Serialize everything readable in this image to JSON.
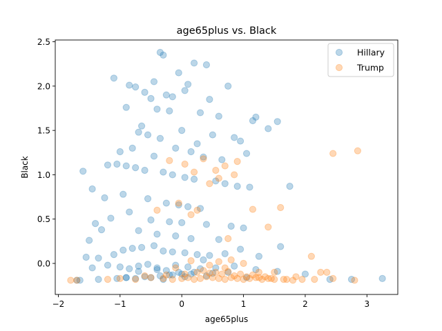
{
  "chart_data": {
    "type": "scatter",
    "title": "age65plus vs. Black",
    "xlabel": "age65plus",
    "ylabel": "Black",
    "xlim": [
      -2.05,
      3.5
    ],
    "ylim": [
      -0.35,
      2.52
    ],
    "xticks": [
      -2,
      -1,
      0,
      1,
      2,
      3
    ],
    "xtick_labels": [
      "−2",
      "−1",
      "0",
      "1",
      "2",
      "3"
    ],
    "yticks": [
      0.0,
      0.5,
      1.0,
      1.5,
      2.0,
      2.5
    ],
    "ytick_labels": [
      "0.0",
      "0.5",
      "1.0",
      "1.5",
      "2.0",
      "2.5"
    ],
    "grid": false,
    "legend_position": "top-right",
    "series": [
      {
        "name": "Hillary",
        "color": "#1f77b4",
        "x": [
          -0.35,
          -0.3,
          0.2,
          0.4,
          -0.05,
          -1.1,
          -0.45,
          -0.85,
          0.75,
          -0.75,
          0.1,
          0.05,
          -0.6,
          -0.25,
          -0.15,
          -0.5,
          0.45,
          -0.9,
          -0.4,
          -0.2,
          0.3,
          1.2,
          1.15,
          0.6,
          1.4,
          1.55,
          -0.65,
          0.0,
          -0.7,
          -0.55,
          0.5,
          -0.35,
          0.85,
          0.95,
          0.25,
          -0.8,
          -0.1,
          0.15,
          -1.0,
          -0.45,
          0.35,
          1.05,
          0.65,
          -1.6,
          -1.45,
          -1.2,
          -1.05,
          -0.9,
          -0.75,
          -0.6,
          -0.3,
          -0.15,
          0.05,
          0.2,
          0.55,
          0.7,
          0.9,
          1.1,
          -0.95,
          -1.25,
          -1.4,
          -0.55,
          -0.25,
          -0.05,
          0.1,
          0.3,
          -0.85,
          -1.15,
          -0.5,
          -0.2,
          0.0,
          0.4,
          0.8,
          1.0,
          1.75,
          -1.5,
          -1.3,
          -0.7,
          -0.4,
          -0.1,
          0.15,
          0.6,
          1.6,
          -1.55,
          -1.35,
          -1.1,
          -0.95,
          -0.8,
          -0.65,
          -0.45,
          -0.3,
          -0.15,
          0.05,
          0.25,
          0.45,
          0.7,
          0.95,
          1.25,
          -1.65,
          -1.45,
          -1.2,
          -1.0,
          -0.85,
          -0.7,
          -0.55,
          -0.4,
          -0.25,
          -0.1,
          0.1,
          0.3,
          0.55,
          0.85,
          1.2,
          1.55,
          2.0,
          2.4,
          2.75,
          3.25,
          -1.7,
          -1.35,
          -1.05,
          -0.9,
          -0.6,
          -0.35,
          -0.2,
          0.0,
          0.2,
          0.5,
          -0.75,
          -0.5,
          -0.3,
          0.05,
          -0.15,
          -0.05,
          0.35,
          -0.9,
          -0.7,
          -0.4,
          0.15,
          0.4,
          0.75,
          1.05
        ],
        "y": [
          2.38,
          2.35,
          2.26,
          2.24,
          2.15,
          2.09,
          2.05,
          2.01,
          2.0,
          1.99,
          2.02,
          1.95,
          1.93,
          1.9,
          1.88,
          1.86,
          1.85,
          1.76,
          1.74,
          1.72,
          1.7,
          1.65,
          1.61,
          1.66,
          1.52,
          1.6,
          1.55,
          1.5,
          1.48,
          1.45,
          1.45,
          1.41,
          1.42,
          1.38,
          1.35,
          1.3,
          1.3,
          1.26,
          1.26,
          1.21,
          1.2,
          1.24,
          1.17,
          1.04,
          0.84,
          1.11,
          1.12,
          1.1,
          1.08,
          1.05,
          1.03,
          1.0,
          0.97,
          0.95,
          0.93,
          0.9,
          0.87,
          0.86,
          0.78,
          0.74,
          0.45,
          0.73,
          0.68,
          0.66,
          0.64,
          0.62,
          0.58,
          0.51,
          0.49,
          0.47,
          0.46,
          0.44,
          0.42,
          0.4,
          0.87,
          0.26,
          0.38,
          0.37,
          0.33,
          0.31,
          0.28,
          0.27,
          0.19,
          0.07,
          0.06,
          0.1,
          0.15,
          0.17,
          0.18,
          0.2,
          0.14,
          0.13,
          0.12,
          0.1,
          0.09,
          0.11,
          0.16,
          0.08,
          -0.19,
          -0.05,
          -0.02,
          -0.04,
          -0.06,
          -0.03,
          -0.01,
          -0.07,
          -0.08,
          -0.02,
          -0.04,
          -0.06,
          -0.05,
          -0.03,
          -0.07,
          -0.09,
          -0.12,
          -0.18,
          -0.18,
          -0.17,
          -0.19,
          -0.18,
          -0.17,
          -0.16,
          -0.15,
          -0.14,
          -0.13,
          -0.12,
          -0.1,
          -0.11,
          -0.17,
          -0.16,
          -0.18,
          -0.15,
          -0.13,
          -0.1,
          0.04,
          -0.16,
          -0.09,
          -0.05,
          -0.12,
          -0.14,
          -0.1,
          -0.16
        ]
      },
      {
        "name": "Trump",
        "color": "#ff7f0e",
        "x": [
          2.85,
          2.45,
          -0.2,
          0.05,
          0.35,
          0.7,
          0.9,
          0.55,
          0.2,
          0.85,
          0.6,
          0.45,
          1.6,
          1.15,
          1.4,
          -0.05,
          0.25,
          -0.4,
          0.15,
          0.75,
          2.1,
          2.25,
          2.35,
          -0.1,
          1.5,
          -1.8,
          -1.7,
          -1.2,
          -1.0,
          -0.75,
          -0.5,
          -0.3,
          -0.15,
          0.0,
          0.1,
          0.2,
          0.3,
          0.4,
          0.5,
          0.6,
          0.7,
          0.8,
          0.9,
          1.0,
          1.1,
          1.2,
          1.3,
          1.4,
          1.5,
          1.65,
          1.8,
          1.95,
          2.15,
          2.45,
          2.8,
          -0.6,
          -0.25,
          0.05,
          0.25,
          0.45,
          0.65,
          0.85,
          1.05,
          1.25,
          1.45,
          1.7,
          0.35,
          0.55,
          0.75,
          0.95,
          1.15,
          1.35,
          0.6,
          0.8,
          1.0,
          0.15,
          0.45,
          0.7,
          1.25,
          1.85
        ],
        "y": [
          1.27,
          1.24,
          1.16,
          1.12,
          1.18,
          1.1,
          1.15,
          1.05,
          1.03,
          1.0,
          0.96,
          0.9,
          0.63,
          0.61,
          0.41,
          0.68,
          0.6,
          0.6,
          0.55,
          0.28,
          0.08,
          -0.1,
          -0.1,
          -0.05,
          -0.1,
          -0.19,
          -0.19,
          -0.18,
          -0.17,
          -0.18,
          -0.16,
          -0.17,
          -0.18,
          -0.17,
          -0.16,
          -0.18,
          -0.17,
          -0.15,
          -0.16,
          -0.17,
          -0.18,
          -0.16,
          -0.17,
          -0.18,
          -0.17,
          -0.16,
          -0.18,
          -0.17,
          -0.18,
          -0.18,
          -0.19,
          -0.18,
          -0.18,
          -0.17,
          -0.19,
          -0.14,
          -0.13,
          -0.12,
          -0.1,
          -0.11,
          -0.12,
          -0.14,
          -0.15,
          -0.16,
          -0.17,
          -0.18,
          -0.08,
          -0.1,
          -0.09,
          -0.12,
          -0.13,
          -0.15,
          0.02,
          0.04,
          0.0,
          0.03,
          -0.02,
          -0.05,
          -0.1,
          -0.15
        ]
      }
    ]
  }
}
